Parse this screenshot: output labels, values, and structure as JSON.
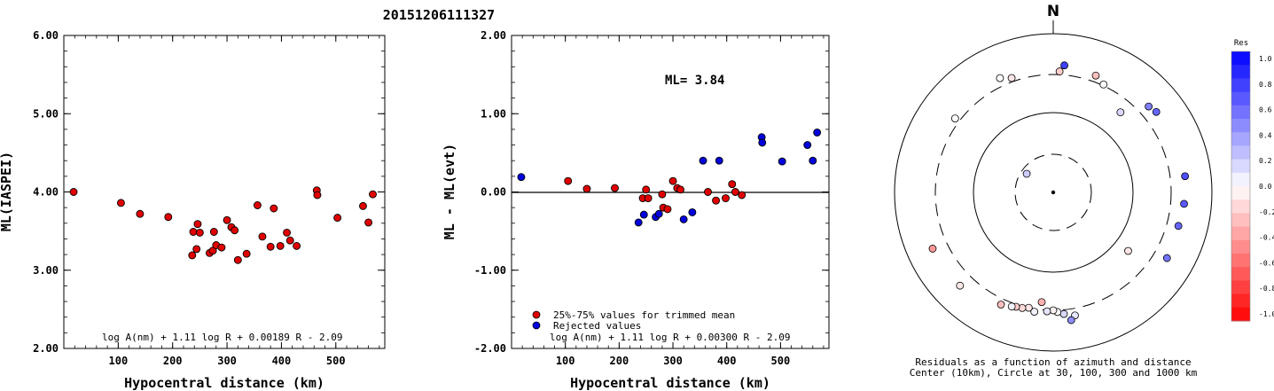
{
  "event_title": "20151206111327",
  "chart_data": [
    {
      "type": "scatter",
      "panel": "ml",
      "xlabel": "Hypocentral distance (km)",
      "ylabel": "ML(IASPEI)",
      "xlim": [
        0,
        590
      ],
      "ylim": [
        2.0,
        6.0
      ],
      "x_ticks": [
        100,
        200,
        300,
        400,
        500
      ],
      "y_ticks": [
        "2.00",
        "3.00",
        "4.00",
        "5.00",
        "6.00"
      ],
      "formula": "log A(nm) + 1.11 log R + 0.00189 R - 2.09",
      "series": [
        {
          "color": "#e00000",
          "points": [
            [
              18,
              4.0
            ],
            [
              105,
              3.86
            ],
            [
              140,
              3.72
            ],
            [
              192,
              3.68
            ],
            [
              236,
              3.19
            ],
            [
              238,
              3.49
            ],
            [
              244,
              3.27
            ],
            [
              246,
              3.59
            ],
            [
              250,
              3.48
            ],
            [
              268,
              3.22
            ],
            [
              274,
              3.25
            ],
            [
              276,
              3.49
            ],
            [
              280,
              3.32
            ],
            [
              290,
              3.29
            ],
            [
              300,
              3.64
            ],
            [
              308,
              3.55
            ],
            [
              314,
              3.51
            ],
            [
              320,
              3.13
            ],
            [
              336,
              3.21
            ],
            [
              356,
              3.83
            ],
            [
              365,
              3.43
            ],
            [
              380,
              3.3
            ],
            [
              386,
              3.79
            ],
            [
              398,
              3.31
            ],
            [
              410,
              3.48
            ],
            [
              416,
              3.38
            ],
            [
              428,
              3.31
            ],
            [
              465,
              4.02
            ],
            [
              466,
              3.96
            ],
            [
              503,
              3.67
            ],
            [
              550,
              3.82
            ],
            [
              560,
              3.61
            ],
            [
              568,
              3.97
            ]
          ]
        }
      ]
    },
    {
      "type": "scatter",
      "panel": "residual",
      "xlabel": "Hypocentral distance (km)",
      "ylabel": "ML - ML(evt)",
      "xlim": [
        0,
        590
      ],
      "ylim": [
        -2.0,
        2.0
      ],
      "x_ticks": [
        100,
        200,
        300,
        400,
        500
      ],
      "y_ticks": [
        "-2.00",
        "-1.00",
        "0.00",
        "1.00",
        "2.00"
      ],
      "hline": 0.0,
      "ml_label": "ML= 3.84",
      "formula": "log A(nm) + 1.11 log R + 0.00300 R - 2.09",
      "series": [
        {
          "name": "25%-75% values for trimmed mean",
          "color": "#e00000",
          "points": [
            [
              105,
              0.14
            ],
            [
              140,
              0.04
            ],
            [
              192,
              0.05
            ],
            [
              244,
              -0.08
            ],
            [
              250,
              0.03
            ],
            [
              254,
              -0.08
            ],
            [
              280,
              -0.03
            ],
            [
              282,
              -0.2
            ],
            [
              290,
              -0.22
            ],
            [
              300,
              0.14
            ],
            [
              308,
              0.05
            ],
            [
              314,
              0.03
            ],
            [
              365,
              0.0
            ],
            [
              380,
              -0.11
            ],
            [
              398,
              -0.08
            ],
            [
              410,
              0.1
            ],
            [
              416,
              0.0
            ],
            [
              428,
              -0.04
            ]
          ]
        },
        {
          "name": "Rejected values",
          "color": "#0000dd",
          "points": [
            [
              18,
              0.19
            ],
            [
              236,
              -0.39
            ],
            [
              246,
              -0.29
            ],
            [
              268,
              -0.32
            ],
            [
              274,
              -0.28
            ],
            [
              320,
              -0.35
            ],
            [
              336,
              -0.26
            ],
            [
              356,
              0.4
            ],
            [
              386,
              0.4
            ],
            [
              465,
              0.7
            ],
            [
              466,
              0.63
            ],
            [
              503,
              0.39
            ],
            [
              550,
              0.6
            ],
            [
              560,
              0.4
            ],
            [
              568,
              0.76
            ]
          ]
        }
      ]
    },
    {
      "type": "polar_scatter",
      "panel": "azimuth",
      "north_label": "N",
      "caption_line1": "Residuals as a function of azimuth and distance",
      "caption_line2": "Center (10km), Circle at 30, 100, 300 and 1000 km",
      "rings_km": [
        30,
        100,
        300,
        1000
      ],
      "stations": [
        {
          "az": 5,
          "dist": 465,
          "res": 0.75
        },
        {
          "az": -25,
          "dist": 440,
          "res": 0.0
        },
        {
          "az": 3,
          "dist": 355,
          "res": -0.2
        },
        {
          "az": -20,
          "dist": 365,
          "res": -0.1
        },
        {
          "az": 20,
          "dist": 410,
          "res": -0.25
        },
        {
          "az": 25,
          "dist": 320,
          "res": 0.0
        },
        {
          "az": 40,
          "dist": 230,
          "res": 0.15
        },
        {
          "az": 48,
          "dist": 480,
          "res": 0.5
        },
        {
          "az": 52,
          "dist": 520,
          "res": 0.6
        },
        {
          "az": -53,
          "dist": 385,
          "res": 0.0
        },
        {
          "az": -55,
          "dist": 27,
          "res": 0.2
        },
        {
          "az": 83,
          "dist": 555,
          "res": 0.7
        },
        {
          "az": 95,
          "dist": 530,
          "res": 0.65
        },
        {
          "az": 105,
          "dist": 500,
          "res": 0.6
        },
        {
          "az": 120,
          "dist": 530,
          "res": 0.55
        },
        {
          "az": 128,
          "dist": 180,
          "res": -0.1
        },
        {
          "az": -115,
          "dist": 560,
          "res": -0.4
        },
        {
          "az": -135,
          "dist": 540,
          "res": -0.1
        },
        {
          "az": 170,
          "dist": 420,
          "res": 0.1
        },
        {
          "az": 172,
          "dist": 490,
          "res": 0.45
        },
        {
          "az": 175,
          "dist": 370,
          "res": 0.15
        },
        {
          "az": 178,
          "dist": 330,
          "res": 0.0
        },
        {
          "az": 180,
          "dist": 300,
          "res": -0.05
        },
        {
          "az": 183,
          "dist": 320,
          "res": 0.1
        },
        {
          "az": 186,
          "dist": 260,
          "res": -0.3
        },
        {
          "az": 189,
          "dist": 350,
          "res": 0.05
        },
        {
          "az": 192,
          "dist": 300,
          "res": -0.1
        },
        {
          "az": 195,
          "dist": 330,
          "res": -0.15
        },
        {
          "az": 198,
          "dist": 340,
          "res": -0.2
        },
        {
          "az": 200,
          "dist": 360,
          "res": 0.05
        },
        {
          "az": 205,
          "dist": 400,
          "res": -0.25
        }
      ],
      "colorbar": {
        "title": "Res",
        "labels": [
          "1.0",
          "0.8",
          "0.6",
          "0.4",
          "0.2",
          "0.0",
          "-0.2",
          "-0.4",
          "-0.6",
          "-0.8",
          "-1.0"
        ]
      }
    }
  ]
}
